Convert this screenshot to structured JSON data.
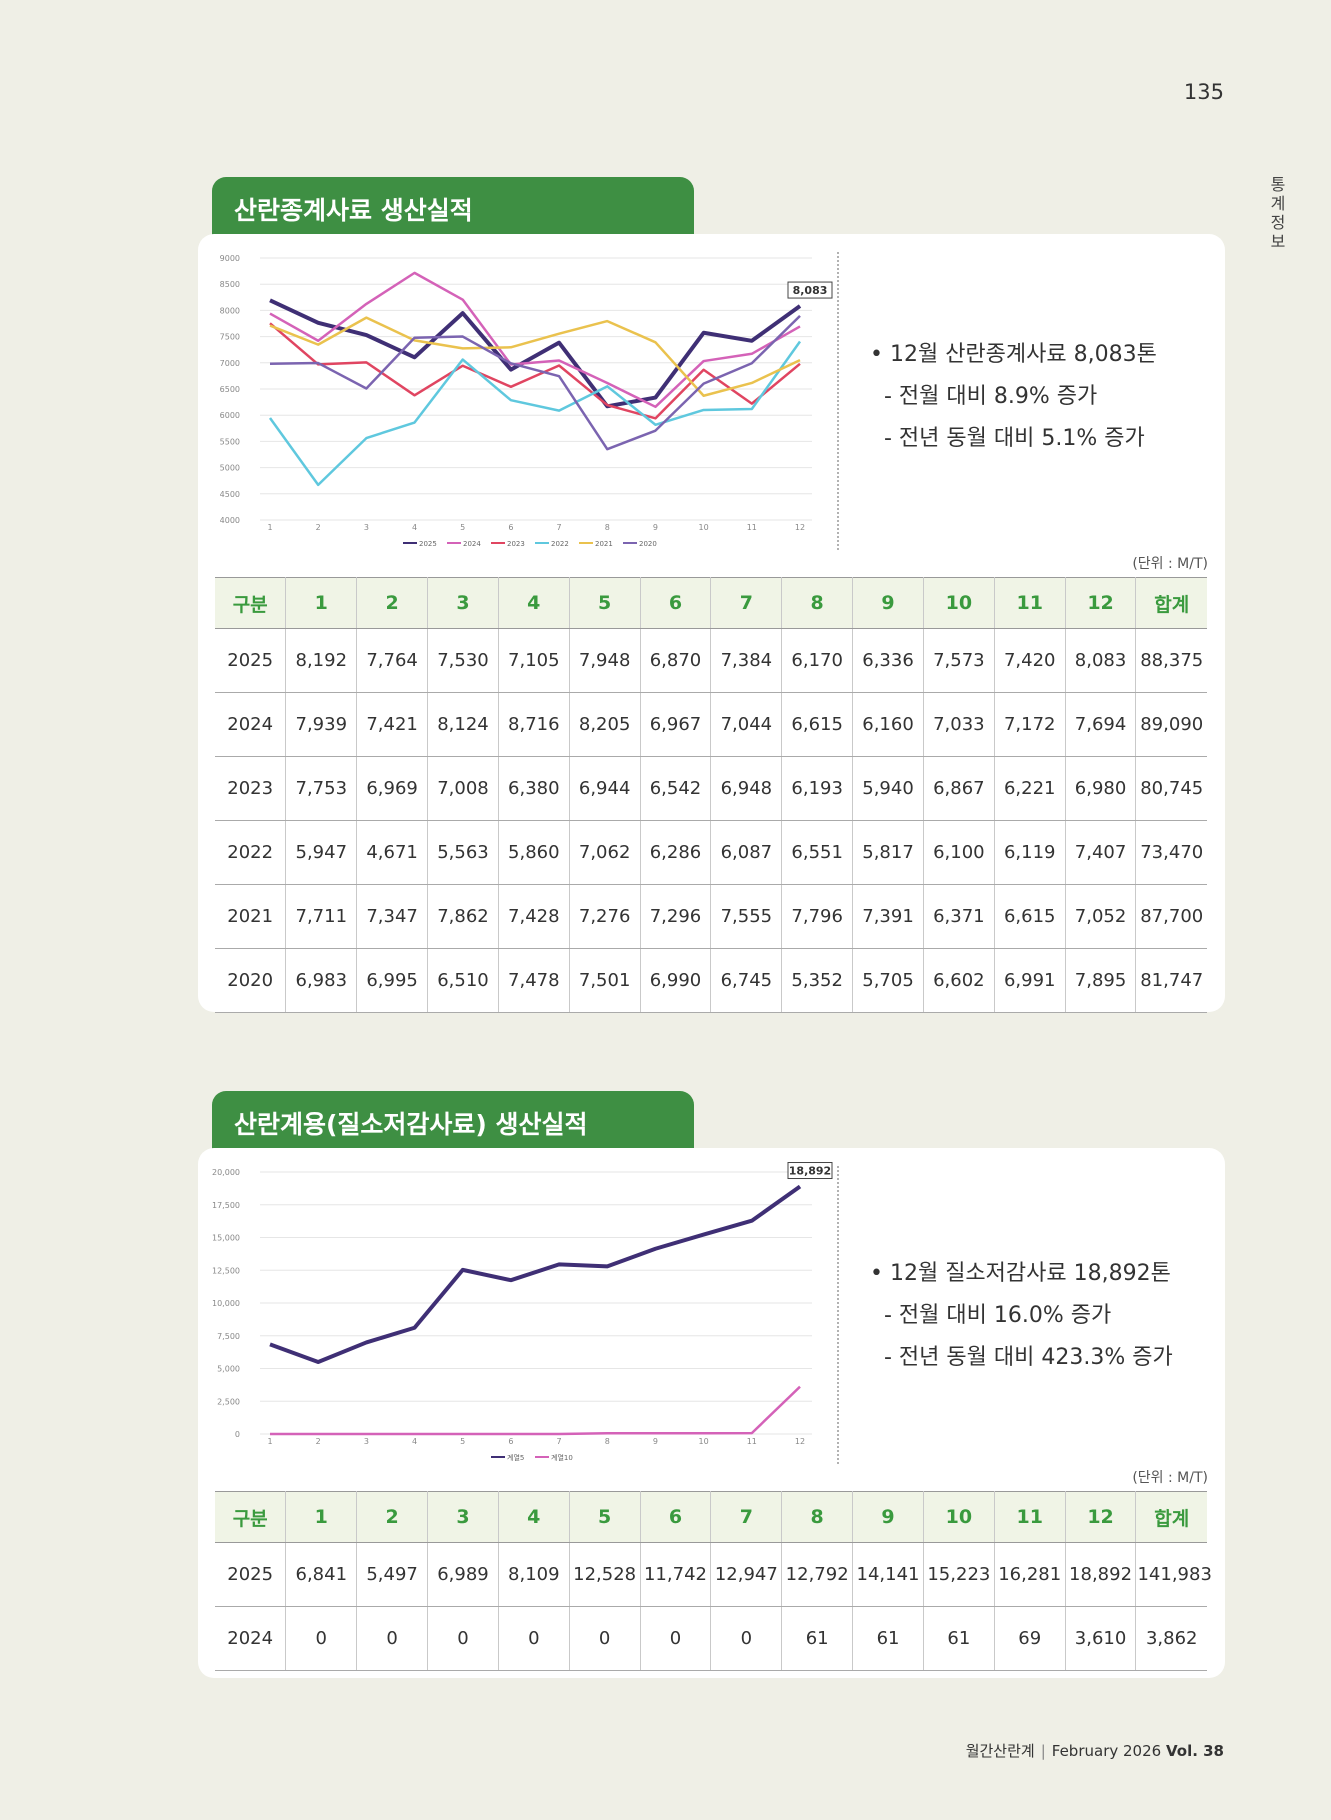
{
  "page_number": "135",
  "side_label": "통계정보",
  "sections": [
    {
      "title": "산란종계사료 생산실적",
      "summary": {
        "bullet": "• 12월 산란종계사료 8,083톤",
        "lines": [
          "- 전월 대비 8.9% 증가",
          "- 전년 동월 대비 5.1% 증가"
        ]
      },
      "unit": "(단위 : M/T)",
      "table": {
        "headers": [
          "구분",
          "1",
          "2",
          "3",
          "4",
          "5",
          "6",
          "7",
          "8",
          "9",
          "10",
          "11",
          "12",
          "합계"
        ],
        "rows": [
          [
            "2025",
            "8,192",
            "7,764",
            "7,530",
            "7,105",
            "7,948",
            "6,870",
            "7,384",
            "6,170",
            "6,336",
            "7,573",
            "7,420",
            "8,083",
            "88,375"
          ],
          [
            "2024",
            "7,939",
            "7,421",
            "8,124",
            "8,716",
            "8,205",
            "6,967",
            "7,044",
            "6,615",
            "6,160",
            "7,033",
            "7,172",
            "7,694",
            "89,090"
          ],
          [
            "2023",
            "7,753",
            "6,969",
            "7,008",
            "6,380",
            "6,944",
            "6,542",
            "6,948",
            "6,193",
            "5,940",
            "6,867",
            "6,221",
            "6,980",
            "80,745"
          ],
          [
            "2022",
            "5,947",
            "4,671",
            "5,563",
            "5,860",
            "7,062",
            "6,286",
            "6,087",
            "6,551",
            "5,817",
            "6,100",
            "6,119",
            "7,407",
            "73,470"
          ],
          [
            "2021",
            "7,711",
            "7,347",
            "7,862",
            "7,428",
            "7,276",
            "7,296",
            "7,555",
            "7,796",
            "7,391",
            "6,371",
            "6,615",
            "7,052",
            "87,700"
          ],
          [
            "2020",
            "6,983",
            "6,995",
            "6,510",
            "7,478",
            "7,501",
            "6,990",
            "6,745",
            "5,352",
            "5,705",
            "6,602",
            "6,991",
            "7,895",
            "81,747"
          ]
        ]
      }
    },
    {
      "title": "산란계용(질소저감사료) 생산실적",
      "summary": {
        "bullet": "• 12월 질소저감사료 18,892톤",
        "lines": [
          "- 전월 대비 16.0% 증가",
          "- 전년 동월 대비 423.3% 증가"
        ]
      },
      "unit": "(단위 : M/T)",
      "table": {
        "headers": [
          "구분",
          "1",
          "2",
          "3",
          "4",
          "5",
          "6",
          "7",
          "8",
          "9",
          "10",
          "11",
          "12",
          "합계"
        ],
        "rows": [
          [
            "2025",
            "6,841",
            "5,497",
            "6,989",
            "8,109",
            "12,528",
            "11,742",
            "12,947",
            "12,792",
            "14,141",
            "15,223",
            "16,281",
            "18,892",
            "141,983"
          ],
          [
            "2024",
            "0",
            "0",
            "0",
            "0",
            "0",
            "0",
            "0",
            "61",
            "61",
            "61",
            "69",
            "3,610",
            "3,862"
          ]
        ]
      }
    }
  ],
  "chart_data": [
    {
      "type": "line",
      "x": [
        1,
        2,
        3,
        4,
        5,
        6,
        7,
        8,
        9,
        10,
        11,
        12
      ],
      "ylim": [
        4000,
        9000
      ],
      "yticks": [
        "9000",
        "8500",
        "8000",
        "7500",
        "7000",
        "6500",
        "6000",
        "5500",
        "5000",
        "4500",
        "4000"
      ],
      "grid": true,
      "legend_position": "bottom",
      "callout": "8,083",
      "series": [
        {
          "name": "2025",
          "color": "#3f2f75",
          "values": [
            8192,
            7764,
            7530,
            7105,
            7948,
            6870,
            7384,
            6170,
            6336,
            7573,
            7420,
            8083
          ]
        },
        {
          "name": "2024",
          "color": "#d462b8",
          "values": [
            7939,
            7421,
            8124,
            8716,
            8205,
            6967,
            7044,
            6615,
            6160,
            7033,
            7172,
            7694
          ]
        },
        {
          "name": "2023",
          "color": "#e04561",
          "values": [
            7753,
            6969,
            7008,
            6380,
            6944,
            6542,
            6948,
            6193,
            5940,
            6867,
            6221,
            6980
          ]
        },
        {
          "name": "2022",
          "color": "#5fc8de",
          "values": [
            5947,
            4671,
            5563,
            5860,
            7062,
            6286,
            6087,
            6551,
            5817,
            6100,
            6119,
            7407
          ]
        },
        {
          "name": "2021",
          "color": "#eac24e",
          "values": [
            7711,
            7347,
            7862,
            7428,
            7276,
            7296,
            7555,
            7796,
            7391,
            6371,
            6615,
            7052
          ]
        },
        {
          "name": "2020",
          "color": "#7b64b0",
          "values": [
            6983,
            6995,
            6510,
            7478,
            7501,
            6990,
            6745,
            5352,
            5705,
            6602,
            6991,
            7895
          ]
        }
      ]
    },
    {
      "type": "line",
      "x": [
        1,
        2,
        3,
        4,
        5,
        6,
        7,
        8,
        9,
        10,
        11,
        12
      ],
      "ylim": [
        0,
        20000
      ],
      "yticks": [
        "20,000",
        "17,500",
        "15,000",
        "12,500",
        "10,000",
        "7,500",
        "5,000",
        "2,500",
        "0"
      ],
      "grid": true,
      "legend_position": "bottom",
      "callout": "18,892",
      "series": [
        {
          "name": "계열5",
          "color": "#3f2f75",
          "values": [
            6841,
            5497,
            6989,
            8109,
            12528,
            11742,
            12947,
            12792,
            14141,
            15223,
            16281,
            18892
          ]
        },
        {
          "name": "계열10",
          "color": "#d462b8",
          "values": [
            0,
            0,
            0,
            0,
            0,
            0,
            0,
            61,
            61,
            61,
            69,
            3610
          ]
        }
      ]
    }
  ],
  "footer": {
    "magazine": "월간산란계",
    "issue": "February 2026",
    "vol": "Vol. 38"
  }
}
